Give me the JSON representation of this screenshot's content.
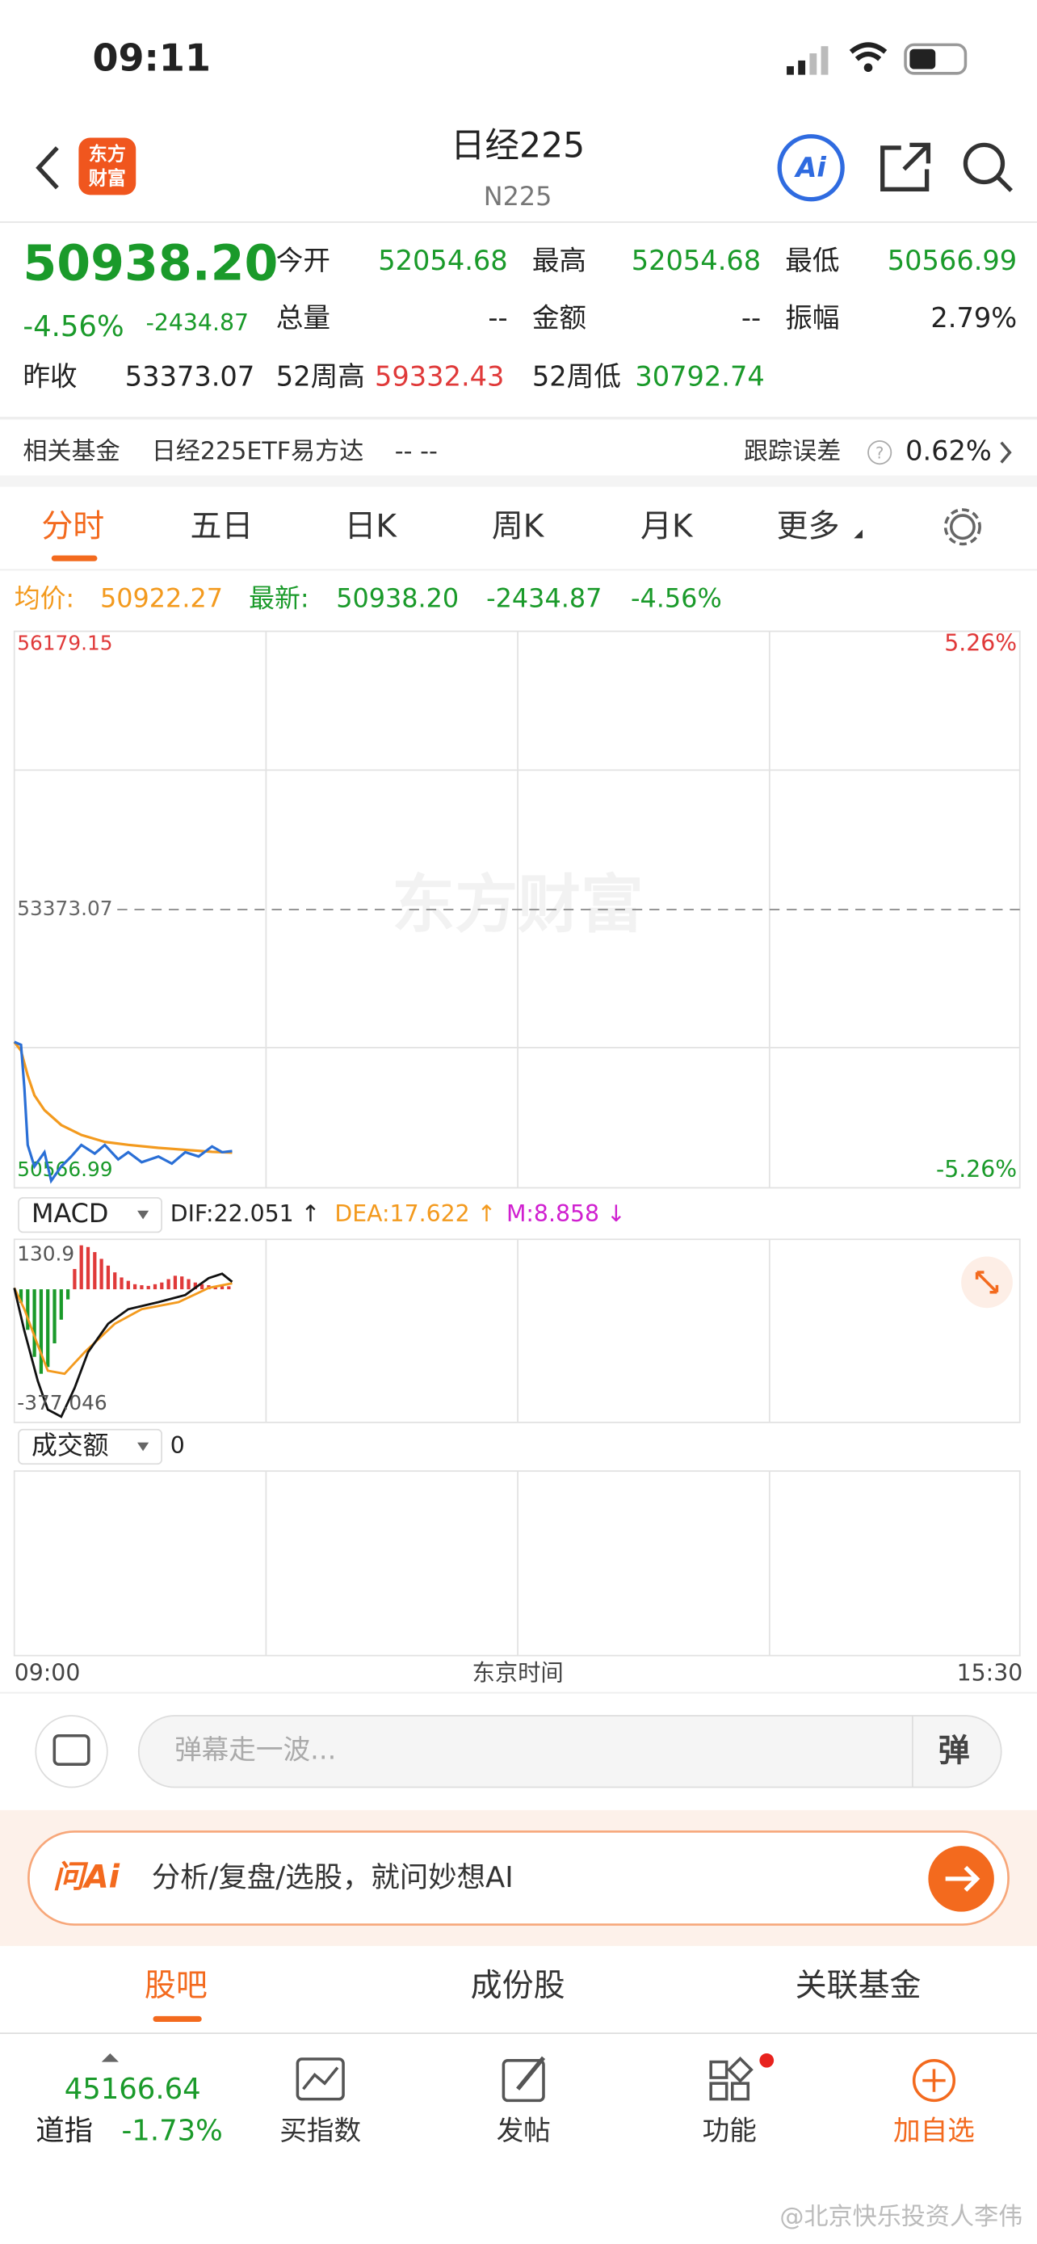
{
  "status": {
    "time": "09:11"
  },
  "header": {
    "logo_top": "东方",
    "logo_bottom": "财富",
    "title": "日经225",
    "subtitle": "N225",
    "ai": "Ai"
  },
  "quote": {
    "price": "50938.20",
    "change_pct": "-4.56%",
    "change": "-2434.87",
    "fields": [
      {
        "label": "今开",
        "value": "52054.68",
        "color": "#1a9a2a"
      },
      {
        "label": "最高",
        "value": "52054.68",
        "color": "#1a9a2a"
      },
      {
        "label": "最低",
        "value": "50566.99",
        "color": "#1a9a2a"
      },
      {
        "label": "总量",
        "value": "--",
        "color": "#222222"
      },
      {
        "label": "金额",
        "value": "--",
        "color": "#222222"
      },
      {
        "label": "振幅",
        "value": "2.79%",
        "color": "#222222"
      }
    ],
    "prev_label": "昨收",
    "prev": "53373.07",
    "high52_label": "52周高",
    "high52": "59332.43",
    "low52_label": "52周低",
    "low52": "30792.74"
  },
  "fund": {
    "label": "相关基金",
    "name": "日经225ETF易方达",
    "value": "-- --",
    "err_label": "跟踪误差",
    "err": "0.62%"
  },
  "tabs": [
    "分时",
    "五日",
    "日K",
    "周K",
    "月K",
    "更多"
  ],
  "summary": {
    "avg_label": "均价:",
    "avg": "50922.27",
    "latest_label": "最新:",
    "latest": "50938.20",
    "change": "-2434.87",
    "pct": "-4.56%"
  },
  "intraday": {
    "type": "line",
    "watermark": "东方财富",
    "xlabel": "东京时间",
    "xlim": [
      0,
      300
    ],
    "xticks": [
      {
        "value": 0,
        "label": "09:00"
      },
      {
        "value": 300,
        "label": "15:30"
      }
    ],
    "ylim": [
      50566.99,
      56179.15
    ],
    "yticks": [
      50566.99,
      53373.07,
      56179.15
    ],
    "y2lim": [
      -5.26,
      5.26
    ],
    "y2ticks": [
      {
        "value": -5.26,
        "label": "-5.26%"
      },
      {
        "value": 5.26,
        "label": "5.26%"
      }
    ],
    "series": [
      {
        "name": "price",
        "color": "#2a6fd6",
        "x": [
          0,
          2,
          3,
          4,
          6,
          9,
          11,
          14,
          17,
          20,
          24,
          27,
          31,
          34,
          38,
          43,
          47,
          51,
          55,
          59,
          62,
          65
        ],
        "values": [
          52038,
          52009,
          51576,
          50999,
          50782,
          50926,
          50638,
          50782,
          50883,
          50999,
          50912,
          50999,
          50854,
          50926,
          50825,
          50883,
          50811,
          50926,
          50883,
          50984,
          50926,
          50938.2
        ]
      },
      {
        "name": "avg",
        "color": "#f39a1e",
        "x": [
          0,
          2,
          4,
          6,
          9,
          14,
          20,
          27,
          34,
          43,
          51,
          59,
          65
        ],
        "values": [
          52038,
          51950,
          51700,
          51500,
          51350,
          51200,
          51100,
          51030,
          51000,
          50970,
          50950,
          50930,
          50922.27
        ]
      }
    ]
  },
  "macd": {
    "indicator": "MACD",
    "dif_label": "DIF:22.051 ↑",
    "dea_label": "DEA:17.622 ↑",
    "m_label": "M:8.858 ↓",
    "ylim": [
      -377.046,
      130.9
    ],
    "yticks": [
      -377.046,
      130.9
    ],
    "dif": {
      "color": "#111111",
      "x": [
        0,
        3,
        7,
        10,
        14,
        18,
        22,
        28,
        34,
        43,
        51,
        58,
        62,
        65
      ],
      "values": [
        4,
        -123,
        -271,
        -356,
        -377,
        -292,
        -186,
        -102,
        -59,
        -38,
        -17,
        33,
        46,
        22.051
      ]
    },
    "dea": {
      "color": "#f39a1e",
      "x": [
        0,
        3,
        7,
        10,
        15,
        21,
        30,
        38,
        49,
        58,
        65
      ],
      "values": [
        4,
        -59,
        -165,
        -241,
        -250,
        -186,
        -102,
        -59,
        -38,
        4,
        17.622
      ]
    },
    "hist": {
      "up_color": "#e03a3a",
      "down_color": "#1a9a2a",
      "x": [
        2,
        4,
        6,
        8,
        10,
        12,
        14,
        16,
        18,
        20,
        22,
        24,
        26,
        28,
        30,
        32,
        34,
        36,
        38,
        40,
        42,
        44,
        46,
        48,
        50,
        52,
        54,
        56,
        58,
        60,
        62,
        64
      ],
      "values": [
        -40,
        -120,
        -200,
        -250,
        -230,
        -160,
        -90,
        -30,
        60,
        130,
        125,
        110,
        90,
        70,
        50,
        35,
        25,
        15,
        12,
        10,
        15,
        20,
        30,
        40,
        38,
        30,
        20,
        15,
        12,
        10,
        9,
        8.858
      ]
    }
  },
  "volume": {
    "indicator": "成交额",
    "value": "0"
  },
  "comment": {
    "placeholder": "弹幕走一波...",
    "button": "弹"
  },
  "ai_bar": {
    "logo": "问Ai",
    "text": "分析/复盘/选股，就问妙想AI"
  },
  "sub_tabs": [
    "股吧",
    "成份股",
    "关联基金"
  ],
  "bottom": {
    "index_value": "45166.64",
    "index_name": "道指",
    "index_pct": "-1.73%",
    "nav": [
      "买指数",
      "发帖",
      "功能",
      "加自选"
    ]
  },
  "watermark": "@北京快乐投资人李伟"
}
